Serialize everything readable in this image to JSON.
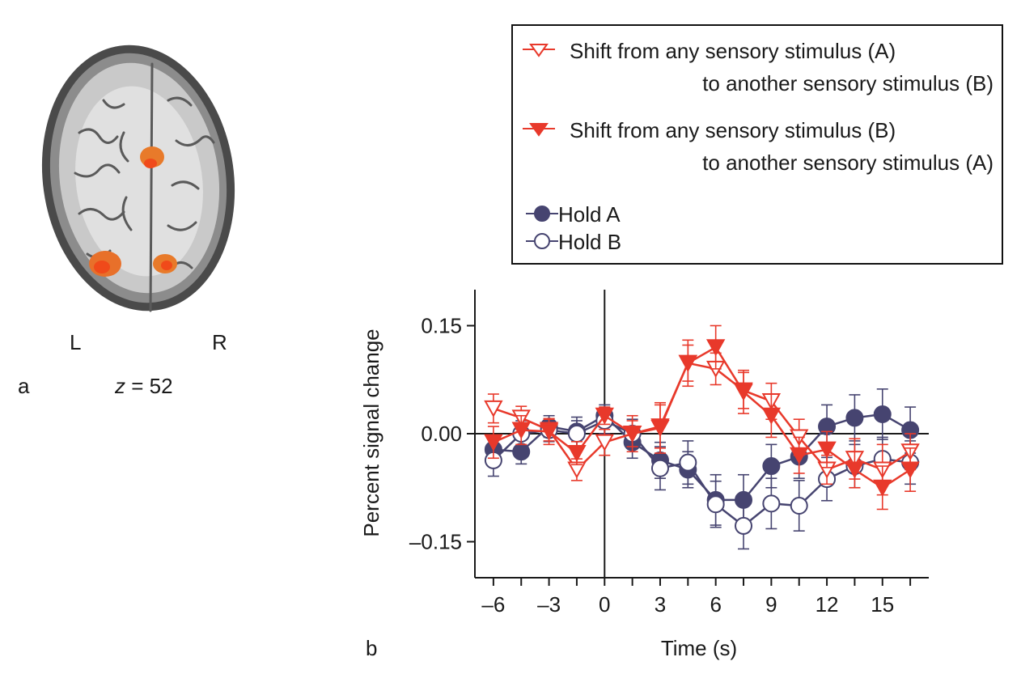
{
  "panel_a": {
    "panel_label": "a",
    "left_label": "L",
    "right_label": "R",
    "slice_var": "z",
    "slice_value": "= 52"
  },
  "panel_b": {
    "panel_label": "b"
  },
  "chart_data": {
    "type": "line",
    "xlabel": "Time (s)",
    "ylabel": "Percent signal change",
    "xlim": [
      -7,
      17.5
    ],
    "ylim": [
      -0.2,
      0.2
    ],
    "x_ticks": [
      -6,
      -3,
      0,
      3,
      6,
      9,
      12,
      15
    ],
    "x_tick_labels": [
      "–6",
      "–3",
      "0",
      "3",
      "6",
      "9",
      "12",
      "15"
    ],
    "x_minor_ticks": [
      -6,
      -4.5,
      -3,
      -1.5,
      0,
      1.5,
      3,
      4.5,
      6,
      7.5,
      9,
      10.5,
      12,
      13.5,
      15,
      16.5
    ],
    "y_ticks": [
      0.15,
      0.0,
      -0.15
    ],
    "y_tick_labels": [
      "0.15",
      "0.00",
      "–0.15"
    ],
    "reference_lines": {
      "x": 0,
      "y": 0
    },
    "x": [
      -6,
      -4.5,
      -3,
      -1.5,
      0,
      1.5,
      3,
      4.5,
      6,
      7.5,
      9,
      10.5,
      12,
      13.5,
      15,
      16.5
    ],
    "series": [
      {
        "name": "Shift from any sensory stimulus (A) to another sensory stimulus (B)",
        "legend_line1": "Shift from any sensory stimulus (A)",
        "legend_line2": "to another sensory stimulus (B)",
        "marker": "triangle-down-open",
        "color": "#e8392b",
        "values": [
          0.035,
          0.022,
          0.005,
          -0.05,
          -0.012,
          0.0,
          0.01,
          0.098,
          0.09,
          0.06,
          0.045,
          -0.005,
          -0.05,
          -0.035,
          -0.05,
          -0.025
        ],
        "errors": [
          0.02,
          0.016,
          0.015,
          0.015,
          0.018,
          0.018,
          0.03,
          0.032,
          0.022,
          0.025,
          0.025,
          0.025,
          0.02,
          0.028,
          0.035,
          0.025
        ]
      },
      {
        "name": "Shift from any sensory stimulus (B) to another sensory stimulus (A)",
        "legend_line1": "Shift from any sensory stimulus (B)",
        "legend_line2": "to another sensory stimulus (A)",
        "marker": "triangle-down-filled",
        "color": "#e8392b",
        "values": [
          -0.012,
          0.005,
          0.003,
          -0.027,
          0.025,
          0.0,
          0.008,
          0.098,
          0.12,
          0.058,
          0.025,
          -0.03,
          -0.022,
          -0.05,
          -0.075,
          -0.05
        ],
        "errors": [
          0.022,
          0.02,
          0.018,
          0.016,
          0.012,
          0.025,
          0.035,
          0.025,
          0.03,
          0.03,
          0.03,
          0.025,
          0.025,
          0.025,
          0.03,
          0.03
        ]
      },
      {
        "name": "Hold A",
        "legend_line1": "Hold A",
        "marker": "circle-filled",
        "color": "#464470",
        "values": [
          -0.022,
          -0.025,
          0.01,
          0.003,
          0.025,
          -0.012,
          -0.037,
          -0.05,
          -0.092,
          -0.092,
          -0.045,
          -0.032,
          0.01,
          0.022,
          0.027,
          0.005
        ],
        "errors": [
          0.02,
          0.017,
          0.015,
          0.02,
          0.015,
          0.022,
          0.025,
          0.025,
          0.035,
          0.035,
          0.03,
          0.03,
          0.03,
          0.032,
          0.035,
          0.032
        ]
      },
      {
        "name": "Hold B",
        "legend_line1": "Hold B",
        "marker": "circle-open",
        "color": "#464470",
        "values": [
          -0.037,
          0.0,
          0.005,
          0.0,
          0.018,
          0.0,
          -0.048,
          -0.04,
          -0.098,
          -0.128,
          -0.097,
          -0.1,
          -0.063,
          -0.045,
          -0.035,
          -0.04
        ],
        "errors": [
          0.022,
          0.018,
          0.016,
          0.018,
          0.018,
          0.02,
          0.03,
          0.03,
          0.032,
          0.032,
          0.035,
          0.035,
          0.03,
          0.03,
          0.03,
          0.03
        ]
      }
    ]
  }
}
